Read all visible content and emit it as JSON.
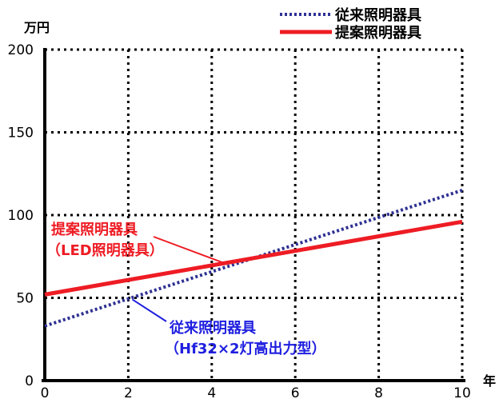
{
  "chart_data": {
    "type": "line",
    "ylabel": "万円",
    "xlabel": "年",
    "xlim": [
      0,
      10
    ],
    "ylim": [
      0,
      200
    ],
    "x_ticks": [
      0,
      2,
      4,
      6,
      8,
      10
    ],
    "y_ticks": [
      0,
      50,
      100,
      150,
      200
    ],
    "grid": true,
    "legend_position": "top-right",
    "series": [
      {
        "name": "従来照明器具",
        "style": "dotted",
        "color": "#2e3192",
        "x": [
          0,
          10
        ],
        "y": [
          33,
          115
        ]
      },
      {
        "name": "提案照明器具",
        "style": "solid",
        "color": "#ee1c24",
        "x": [
          0,
          10
        ],
        "y": [
          52,
          96
        ]
      }
    ],
    "annotations": [
      {
        "series": "提案照明器具",
        "lines": [
          "提案照明器具",
          "（LED照明器具）"
        ],
        "color": "#ee1c24",
        "pointer": {
          "x": 4.3,
          "y": 71
        }
      },
      {
        "series": "従来照明器具",
        "lines": [
          "従来照明器具",
          "（Hf32×2灯高出力型）"
        ],
        "color": "#1f1fe0",
        "pointer": {
          "x": 2.1,
          "y": 49
        }
      }
    ]
  }
}
